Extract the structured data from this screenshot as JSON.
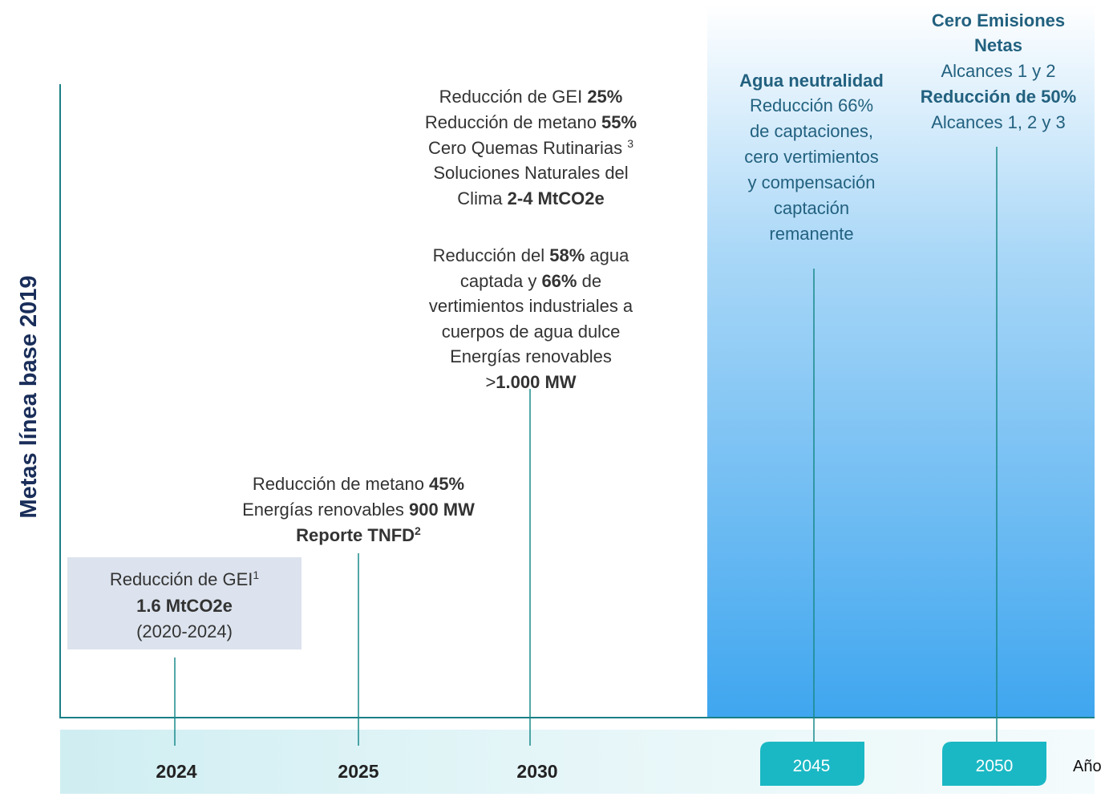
{
  "y_axis_label": "Metas línea base 2019",
  "x_axis_label": "Año",
  "years": [
    "2024",
    "2025",
    "2030",
    "2045",
    "2050"
  ],
  "blocks": [
    {
      "lines": [
        [
          {
            "t": "Reducción de GEI"
          },
          {
            "t": "1",
            "sup": true
          }
        ],
        [
          {
            "t": "1.6 MtCO2e",
            "b": true
          }
        ],
        [
          {
            "t": "(2020-2024)"
          }
        ]
      ]
    },
    {
      "lines": [
        [
          {
            "t": "Reducción de metano "
          },
          {
            "t": "45%",
            "b": true
          }
        ],
        [
          {
            "t": "Energías renovables "
          },
          {
            "t": "900 MW",
            "b": true
          }
        ],
        [
          {
            "t": "Reporte TNFD",
            "b": true
          },
          {
            "t": "2",
            "b": true,
            "sup": true
          }
        ]
      ]
    },
    {
      "lines": [
        [
          {
            "t": "Reducción de GEI "
          },
          {
            "t": "25%",
            "b": true
          }
        ],
        [
          {
            "t": "Reducción de metano "
          },
          {
            "t": "55%",
            "b": true
          }
        ],
        [
          {
            "t": "Cero Quemas Rutinarias "
          },
          {
            "t": "3",
            "sup": true
          }
        ],
        [
          {
            "t": "Soluciones Naturales del"
          }
        ],
        [
          {
            "t": "Clima "
          },
          {
            "t": "2-4 MtCO2e",
            "b": true
          }
        ],
        [
          {
            "t": "Reducción del "
          },
          {
            "t": "58%",
            "b": true
          },
          {
            "t": " agua"
          }
        ],
        [
          {
            "t": "captada y "
          },
          {
            "t": "66%",
            "b": true
          },
          {
            "t": " de"
          }
        ],
        [
          {
            "t": "vertimientos industriales a"
          }
        ],
        [
          {
            "t": "cuerpos de agua dulce"
          }
        ],
        [
          {
            "t": "Energías renovables"
          }
        ],
        [
          {
            "t": ">"
          },
          {
            "t": "1.000 MW",
            "b": true
          }
        ]
      ]
    },
    {
      "lines": [
        [
          {
            "t": "Agua neutralidad",
            "b": true
          }
        ],
        [
          {
            "t": "Reducción 66%"
          }
        ],
        [
          {
            "t": "de captaciones,"
          }
        ],
        [
          {
            "t": "cero vertimientos"
          }
        ],
        [
          {
            "t": "y compensación"
          }
        ],
        [
          {
            "t": "captación"
          }
        ],
        [
          {
            "t": "remanente"
          }
        ]
      ]
    },
    {
      "lines": [
        [
          {
            "t": "Cero Emisiones",
            "b": true
          }
        ],
        [
          {
            "t": "Netas",
            "b": true
          }
        ],
        [
          {
            "t": "Alcances 1 y 2"
          }
        ],
        [
          {
            "t": "Reducción de 50%",
            "b": true
          }
        ],
        [
          {
            "t": "Alcances 1, 2 y 3"
          }
        ]
      ]
    }
  ]
}
